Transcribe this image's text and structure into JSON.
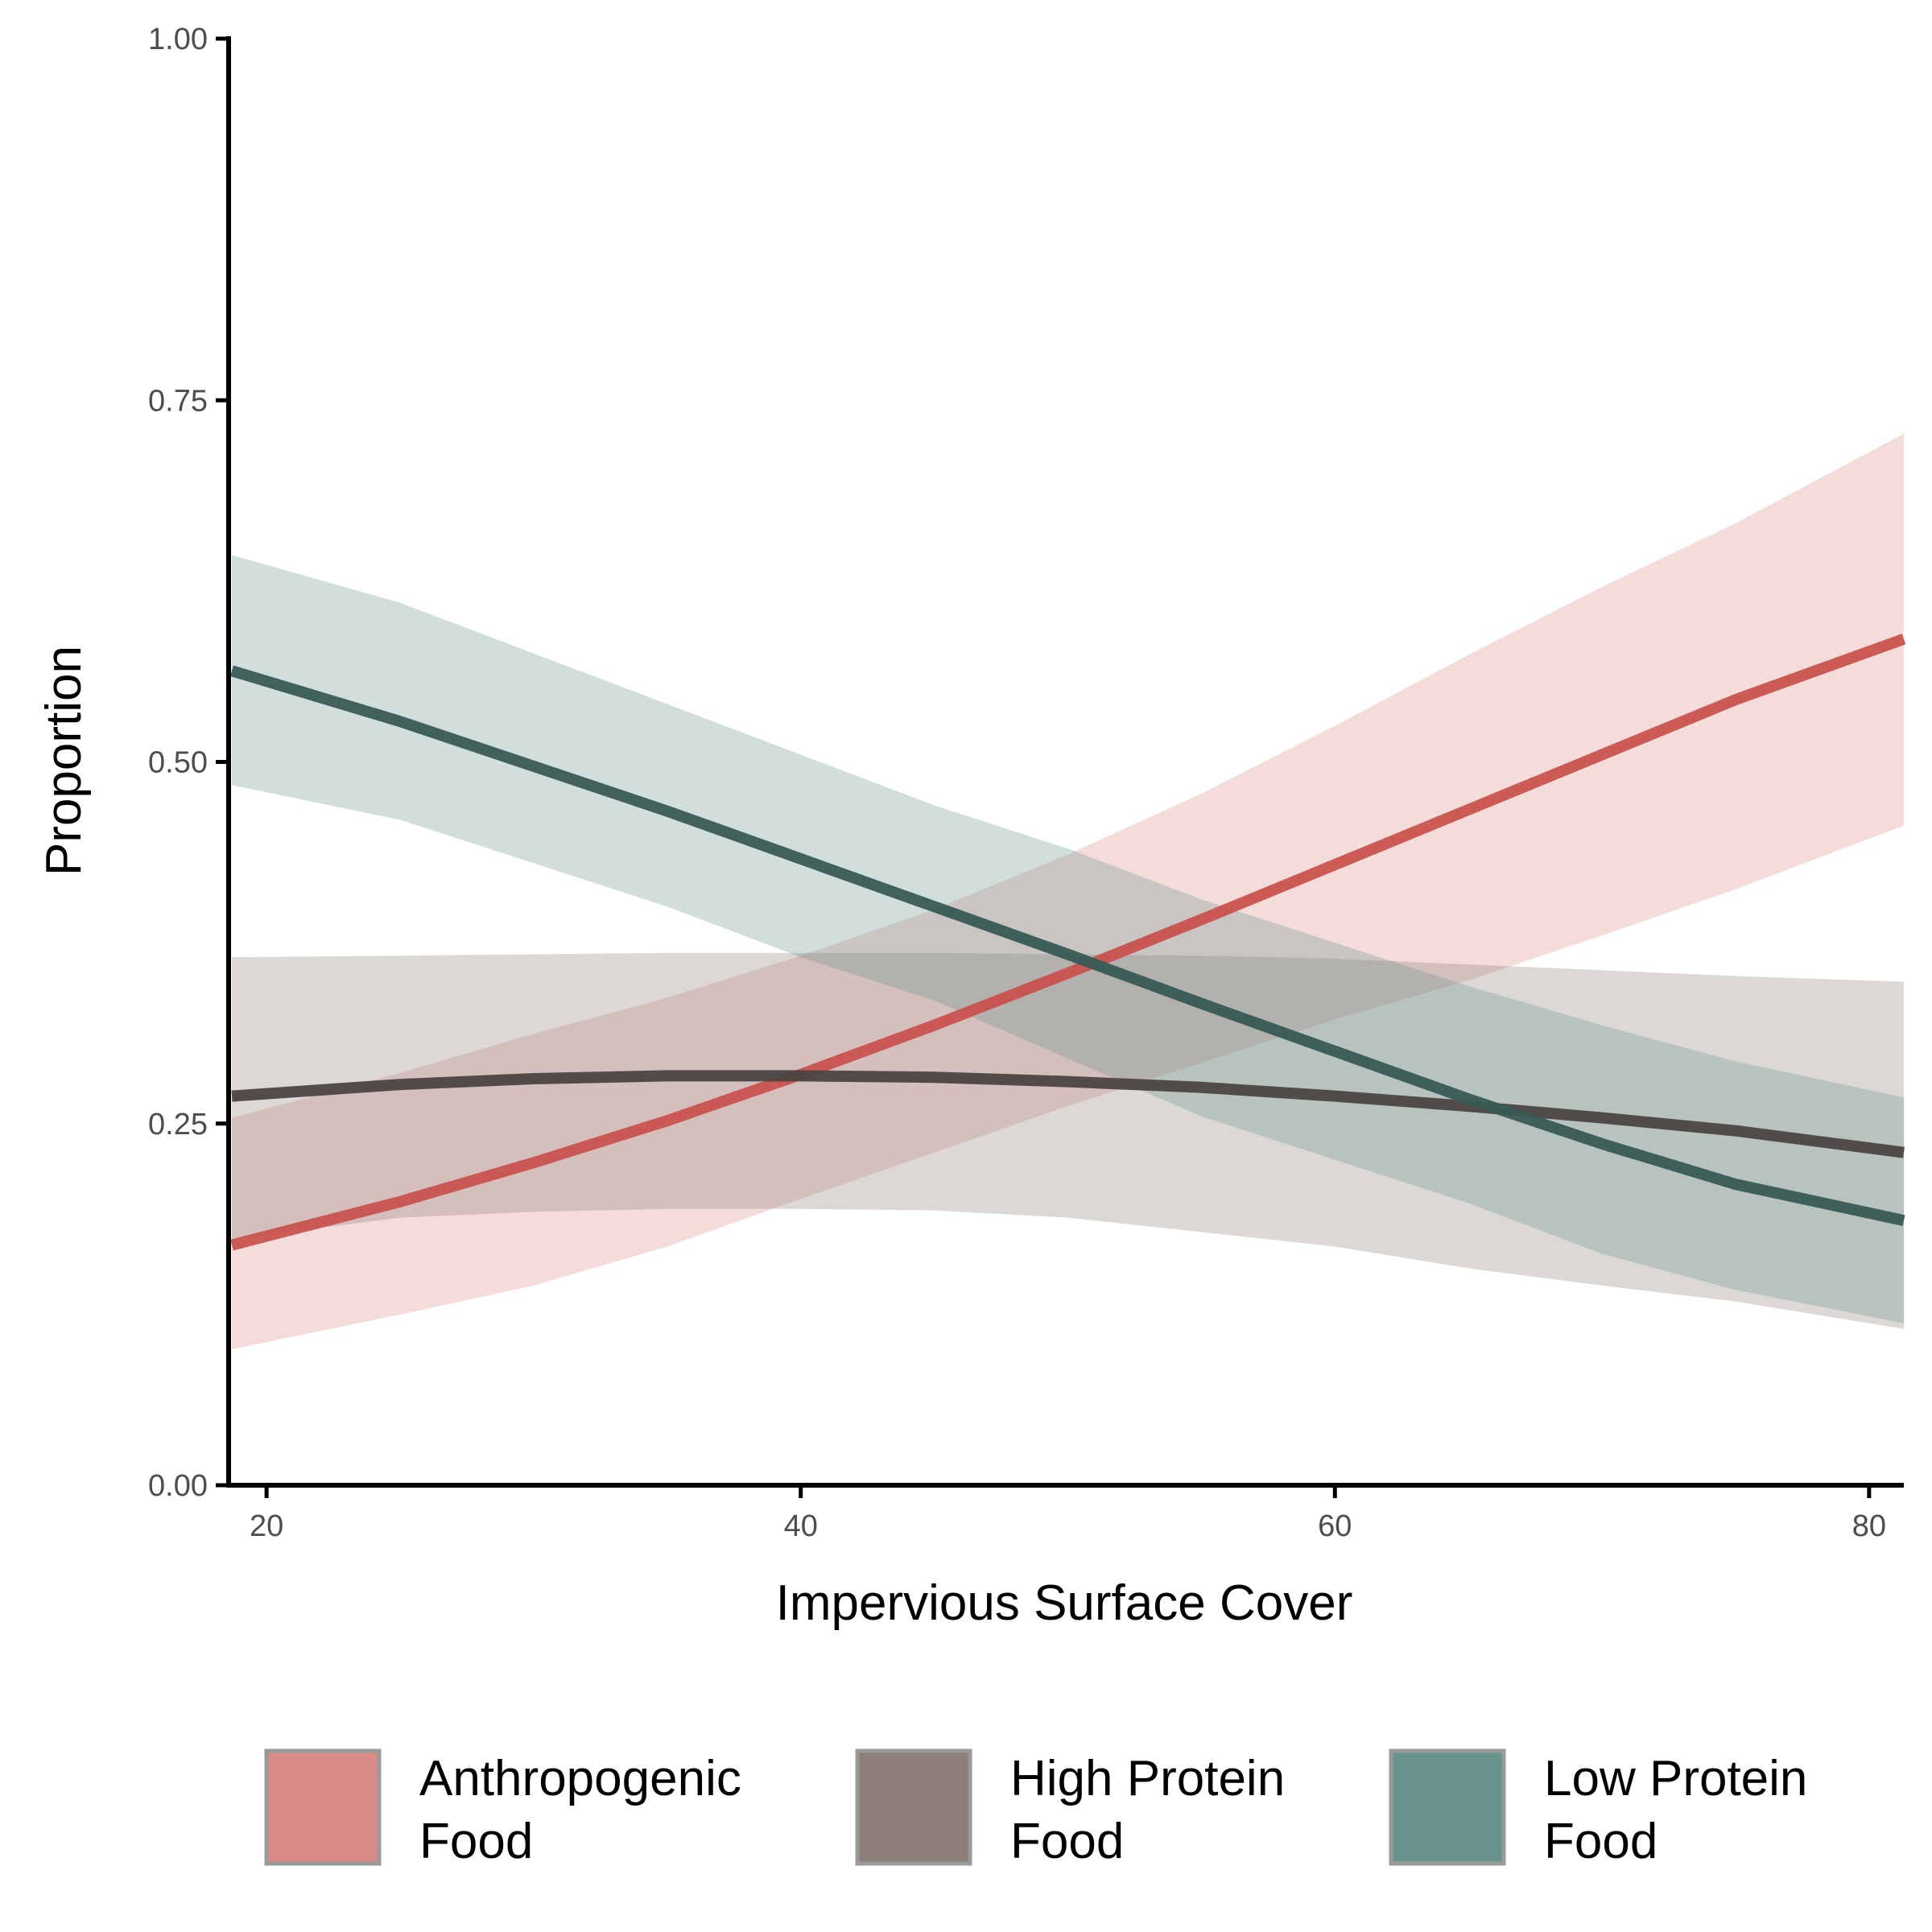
{
  "chart_data": {
    "type": "line",
    "title": "",
    "xlabel": "Impervious Surface Cover",
    "ylabel": "Proportion",
    "xlim": [
      18.7,
      81.3
    ],
    "ylim": [
      0,
      1
    ],
    "x_ticks": [
      {
        "value": 20,
        "label": "20"
      },
      {
        "value": 40,
        "label": "40"
      },
      {
        "value": 60,
        "label": "60"
      },
      {
        "value": 80,
        "label": "80"
      }
    ],
    "y_ticks": [
      {
        "value": 0,
        "label": "0.00"
      },
      {
        "value": 0.25,
        "label": "0.25"
      },
      {
        "value": 0.5,
        "label": "0.50"
      },
      {
        "value": 0.75,
        "label": "0.75"
      },
      {
        "value": 1.0,
        "label": "1.00"
      }
    ],
    "grid": false,
    "legend_position": "bottom",
    "series": [
      {
        "name_lines": [
          "Anthropogenic",
          "Food"
        ],
        "line_color": "#c9524e",
        "band_color": "#dc8a87",
        "band_opacity": 0.3,
        "x": [
          18.7,
          25,
          30,
          35,
          40,
          45,
          50,
          55,
          60,
          65,
          70,
          75,
          81.3
        ],
        "y": [
          0.166,
          0.196,
          0.223,
          0.252,
          0.284,
          0.318,
          0.354,
          0.391,
          0.429,
          0.467,
          0.505,
          0.543,
          0.585
        ],
        "lower": [
          0.094,
          0.118,
          0.138,
          0.165,
          0.198,
          0.23,
          0.262,
          0.292,
          0.322,
          0.349,
          0.38,
          0.412,
          0.456
        ],
        "upper": [
          0.254,
          0.285,
          0.312,
          0.337,
          0.366,
          0.398,
          0.436,
          0.478,
          0.525,
          0.574,
          0.621,
          0.665,
          0.727
        ]
      },
      {
        "name_lines": [
          "High Protein",
          "Food"
        ],
        "line_color": "#4b4542",
        "band_color": "#8b7f78",
        "band_opacity": 0.3,
        "x": [
          18.7,
          25,
          30,
          35,
          40,
          45,
          50,
          55,
          60,
          65,
          70,
          75,
          81.3
        ],
        "y": [
          0.269,
          0.277,
          0.281,
          0.283,
          0.283,
          0.282,
          0.279,
          0.275,
          0.269,
          0.262,
          0.254,
          0.245,
          0.23
        ],
        "lower": [
          0.17,
          0.185,
          0.189,
          0.191,
          0.191,
          0.19,
          0.185,
          0.175,
          0.165,
          0.15,
          0.138,
          0.127,
          0.108
        ],
        "upper": [
          0.365,
          0.366,
          0.367,
          0.368,
          0.368,
          0.368,
          0.367,
          0.366,
          0.364,
          0.36,
          0.356,
          0.352,
          0.348
        ]
      },
      {
        "name_lines": [
          "Low Protein",
          "Food"
        ],
        "line_color": "#385a54",
        "band_color": "#67938c",
        "band_opacity": 0.3,
        "x": [
          18.7,
          25,
          30,
          35,
          40,
          45,
          50,
          55,
          60,
          65,
          70,
          75,
          81.3
        ],
        "y": [
          0.563,
          0.528,
          0.497,
          0.466,
          0.433,
          0.4,
          0.367,
          0.333,
          0.3,
          0.267,
          0.236,
          0.208,
          0.183
        ],
        "lower": [
          0.484,
          0.46,
          0.43,
          0.4,
          0.365,
          0.335,
          0.295,
          0.255,
          0.225,
          0.195,
          0.16,
          0.135,
          0.112
        ],
        "upper": [
          0.643,
          0.61,
          0.575,
          0.54,
          0.505,
          0.47,
          0.44,
          0.405,
          0.375,
          0.345,
          0.318,
          0.293,
          0.268
        ]
      }
    ]
  }
}
